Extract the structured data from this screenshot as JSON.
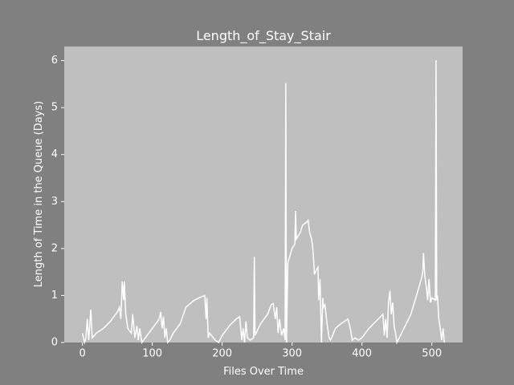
{
  "chart_data": {
    "type": "line",
    "title": "Length_of_Stay_Stair",
    "xlabel": "Files Over Time",
    "ylabel": "Length of Time in the Queue (Days)",
    "x": [
      0,
      3,
      5,
      7,
      9,
      12,
      14,
      20,
      30,
      40,
      50,
      53,
      55,
      57,
      59,
      60,
      62,
      65,
      70,
      72,
      75,
      78,
      80,
      82,
      85,
      90,
      100,
      110,
      112,
      114,
      116,
      118,
      120,
      122,
      125,
      130,
      140,
      148,
      160,
      170,
      175,
      177,
      178,
      180,
      182,
      190,
      195,
      200,
      210,
      220,
      225,
      228,
      230,
      232,
      234,
      236,
      240,
      245,
      246,
      247,
      255,
      265,
      270,
      273,
      276,
      278,
      280,
      282,
      285,
      288,
      290,
      291,
      292,
      294,
      300,
      304,
      305,
      306,
      312,
      315,
      320,
      323,
      325,
      328,
      330,
      332,
      335,
      337,
      338,
      340,
      342,
      344,
      345,
      347,
      350,
      353,
      355,
      358,
      362,
      370,
      380,
      384,
      386,
      390,
      395,
      400,
      410,
      420,
      430,
      432,
      434,
      436,
      438,
      440,
      442,
      444,
      446,
      448,
      450,
      455,
      460,
      470,
      478,
      485,
      487,
      488,
      490,
      492,
      494,
      496,
      498,
      500,
      505,
      506,
      507,
      508,
      510,
      512,
      514,
      516,
      518
    ],
    "series": [
      {
        "name": null,
        "color": "#ffffff",
        "values": [
          0.2,
          0.0,
          0.1,
          0.5,
          0.05,
          0.7,
          0.1,
          0.2,
          0.3,
          0.45,
          0.65,
          0.75,
          0.5,
          1.3,
          0.9,
          1.3,
          0.6,
          0.3,
          0.2,
          0.6,
          0.1,
          0.35,
          0.05,
          0.3,
          0.0,
          0.1,
          0.3,
          0.5,
          0.65,
          0.3,
          0.55,
          0.1,
          0.3,
          0.0,
          0.05,
          0.2,
          0.4,
          0.75,
          0.9,
          0.97,
          1.0,
          0.5,
          0.95,
          0.1,
          0.2,
          0.05,
          0.0,
          0.15,
          0.35,
          0.5,
          0.55,
          0.05,
          0.3,
          0.0,
          0.45,
          0.1,
          0.05,
          0.1,
          1.82,
          0.15,
          0.4,
          0.6,
          0.8,
          0.83,
          0.5,
          0.75,
          0.2,
          0.5,
          0.15,
          0.3,
          0.05,
          5.52,
          0.0,
          1.7,
          2.0,
          2.1,
          2.8,
          2.2,
          2.35,
          2.5,
          2.55,
          2.6,
          2.35,
          2.2,
          1.95,
          1.45,
          1.55,
          1.6,
          0.9,
          1.35,
          0.0,
          0.95,
          0.75,
          0.8,
          0.4,
          0.1,
          0.05,
          0.15,
          0.3,
          0.4,
          0.5,
          0.25,
          0.05,
          0.1,
          0.05,
          0.1,
          0.3,
          0.45,
          0.6,
          0.15,
          0.5,
          0.1,
          0.85,
          1.1,
          0.6,
          0.85,
          0.35,
          0.2,
          0.0,
          0.15,
          0.3,
          0.6,
          1.0,
          1.35,
          1.5,
          1.9,
          1.4,
          1.2,
          0.9,
          1.35,
          0.85,
          0.95,
          0.9,
          6.01,
          0.9,
          1.0,
          0.5,
          0.3,
          0.05,
          0.3,
          0.0
        ]
      }
    ],
    "xlim": [
      -26,
      544
    ],
    "xticks": [
      0,
      100,
      200,
      300,
      400,
      500
    ],
    "ylim": [
      0,
      6.3
    ],
    "yticks": [
      0,
      1,
      2,
      3,
      4,
      5,
      6
    ]
  }
}
